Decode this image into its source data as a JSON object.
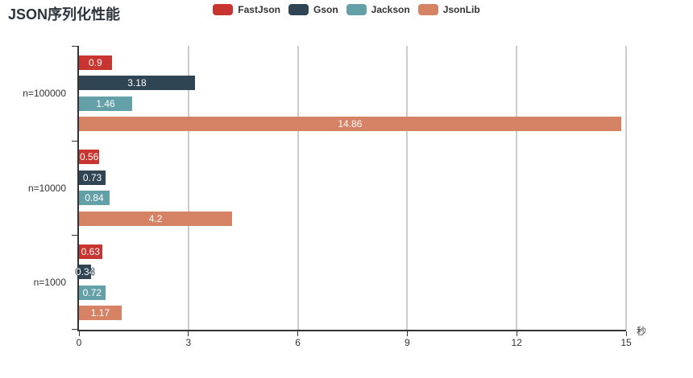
{
  "header": {
    "title": "JSON序列化性能"
  },
  "legend": {
    "items": [
      "FastJson",
      "Gson",
      "Jackson",
      "JsonLib"
    ]
  },
  "chart_data": {
    "type": "bar",
    "orientation": "horizontal",
    "title": "JSON序列化性能",
    "xlabel": "秒",
    "ylabel": "",
    "categories": [
      "n=100000",
      "n=10000",
      "n=1000"
    ],
    "series": [
      {
        "name": "FastJson",
        "color": "#c83430",
        "values": [
          0.9,
          0.56,
          0.63
        ]
      },
      {
        "name": "Gson",
        "color": "#2f4554",
        "values": [
          3.18,
          0.73,
          0.34
        ]
      },
      {
        "name": "Jackson",
        "color": "#64a0a8",
        "values": [
          1.46,
          0.84,
          0.72
        ]
      },
      {
        "name": "JsonLib",
        "color": "#d68265",
        "values": [
          14.86,
          4.2,
          1.17
        ]
      }
    ],
    "value_labels": [
      [
        "0.9",
        "0.56",
        "0.63"
      ],
      [
        "3.18",
        "0.73",
        "0.34"
      ],
      [
        "1.46",
        "0.84",
        "0.72"
      ],
      [
        "14.86",
        "4.2",
        "1.17"
      ]
    ],
    "xlim": [
      0,
      15
    ],
    "xticks": [
      "0",
      "3",
      "6",
      "9",
      "12",
      "15"
    ],
    "grid": true,
    "legend_position": "top",
    "bar_label_position": "inside",
    "colors": {
      "axis": "#333333",
      "gridline": "#cccccc",
      "bar_label_text": "#ffffff",
      "title_text": "#2c343c"
    }
  }
}
